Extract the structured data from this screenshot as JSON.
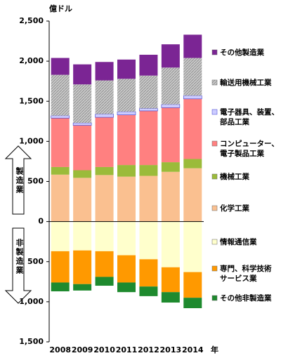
{
  "chart_data": {
    "type": "bar",
    "stacked": true,
    "y_unit_label": "億ドル",
    "x_unit_label": "年",
    "annotations": [
      "製造業",
      "非製造業"
    ],
    "categories": [
      "2008",
      "2009",
      "2010",
      "2011",
      "2012",
      "2013",
      "2014"
    ],
    "ylim": [
      -1500,
      2500
    ],
    "yticks": [
      {
        "value": -1500,
        "label": "1,500"
      },
      {
        "value": -1000,
        "label": "1,000"
      },
      {
        "value": -500,
        "label": "500"
      },
      0,
      500,
      {
        "value": 1000,
        "label": "1,000"
      },
      {
        "value": 1500,
        "label": "1,500"
      },
      {
        "value": 2000,
        "label": "2,000"
      },
      {
        "value": 2500,
        "label": "2,500"
      }
    ],
    "series": [
      {
        "name": "化学工業",
        "color": "#fac090",
        "values": [
          585,
          545,
          580,
          560,
          570,
          620,
          665
        ]
      },
      {
        "name": "機械工業",
        "color": "#9bbb3a",
        "values": [
          95,
          95,
          100,
          145,
          135,
          120,
          115
        ]
      },
      {
        "name": "コンピューター、\n電子製品工業",
        "color": "#ff8080",
        "values": [
          610,
          560,
          620,
          625,
          675,
          680,
          750
        ]
      },
      {
        "name": "電子器具、装置、\n部品工業",
        "color": "#ccccff",
        "values": [
          30,
          30,
          40,
          40,
          30,
          40,
          40
        ]
      },
      {
        "name": "輸送用機械工業",
        "color": "#c8c8c8",
        "values": [
          510,
          480,
          420,
          410,
          410,
          460,
          470
        ]
      },
      {
        "name": "その他製造業",
        "color": "#7b2594",
        "values": [
          210,
          250,
          230,
          240,
          260,
          290,
          290
        ]
      },
      {
        "name": "情報通信業",
        "color": "#ffffcc",
        "values": [
          -370,
          -360,
          -370,
          -420,
          -470,
          -570,
          -630
        ]
      },
      {
        "name": "専門、科学技術\nサービス業",
        "color": "#ff9900",
        "values": [
          -390,
          -420,
          -320,
          -340,
          -340,
          -310,
          -320
        ]
      },
      {
        "name": "その他非製造業",
        "color": "#1e8a2e",
        "values": [
          -110,
          -80,
          -110,
          -120,
          -120,
          -130,
          -130
        ]
      }
    ]
  }
}
